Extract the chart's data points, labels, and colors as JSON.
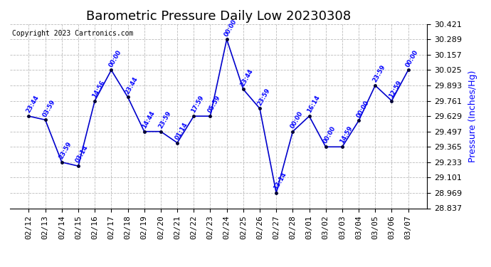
{
  "title": "Barometric Pressure Daily Low 20230308",
  "ylabel": "Pressure (Inches/Hg)",
  "copyright_text": "Copyright 2023 Cartronics.com",
  "background_color": "#ffffff",
  "grid_color": "#bbbbbb",
  "line_color": "#0000cc",
  "point_color": "#000033",
  "label_color": "#0000ff",
  "title_color": "#000000",
  "ylabel_color": "#0000ff",
  "copyright_color": "#000000",
  "ylim_min": 28.837,
  "ylim_max": 30.421,
  "yticks": [
    28.837,
    28.969,
    29.101,
    29.233,
    29.365,
    29.497,
    29.629,
    29.761,
    29.893,
    30.025,
    30.157,
    30.289,
    30.421
  ],
  "dates": [
    "02/12",
    "02/13",
    "02/14",
    "02/15",
    "02/16",
    "02/17",
    "02/18",
    "02/19",
    "02/20",
    "02/21",
    "02/22",
    "02/23",
    "02/24",
    "02/25",
    "02/26",
    "02/27",
    "02/28",
    "03/01",
    "03/02",
    "03/03",
    "03/04",
    "03/05",
    "03/06",
    "03/07"
  ],
  "values": [
    29.629,
    29.597,
    29.233,
    29.2,
    29.761,
    30.025,
    29.793,
    29.497,
    29.497,
    29.4,
    29.629,
    29.629,
    30.289,
    29.86,
    29.695,
    28.969,
    29.497,
    29.629,
    29.365,
    29.365,
    29.59,
    29.893,
    29.761,
    30.025
  ],
  "time_labels": [
    "23:44",
    "03:59",
    "23:59",
    "03:14",
    "14:56",
    "00:00",
    "23:44",
    "14:44",
    "23:59",
    "01:14",
    "17:59",
    "05:59",
    "00:00",
    "23:44",
    "23:59",
    "13:14",
    "00:00",
    "16:14",
    "00:00",
    "14:59",
    "00:00",
    "23:59",
    "12:59",
    "00:00"
  ],
  "title_fontsize": 13,
  "label_fontsize": 8,
  "tick_fontsize": 8,
  "point_size": 4,
  "line_width": 1.2
}
